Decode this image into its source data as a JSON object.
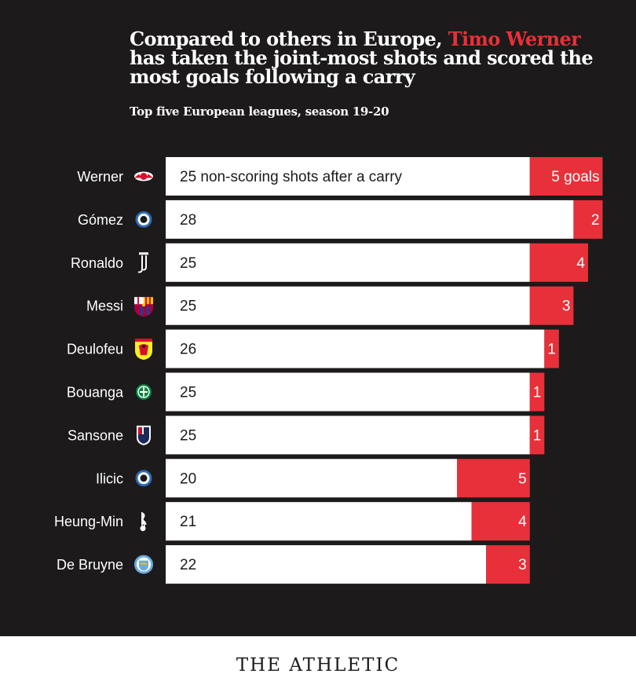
{
  "title": {
    "part1": "Compared to others in Europe, ",
    "highlight": "Timo Werner",
    "part2": " has taken the joint-most shots and scored the most goals following a carry"
  },
  "subtitle": "Top five European leagues, season 19-20",
  "brand": "THE ATHLETIC",
  "colors": {
    "background": "#1c1a1a",
    "shots_bar": "#ffffff",
    "goals_bar": "#e8303a",
    "text": "#ffffff",
    "bar_text": "#1c1a1a"
  },
  "chart_data": {
    "type": "bar",
    "orientation": "horizontal",
    "stacked": true,
    "title": "Compared to others in Europe, Timo Werner has taken the joint-most shots and scored the most goals following a carry",
    "subtitle": "Top five European leagues, season 19-20",
    "categories": [
      "Werner",
      "Gómez",
      "Ronaldo",
      "Messi",
      "Deulofeu",
      "Bouanga",
      "Sansone",
      "Ilicic",
      "Heung-Min",
      "De Bruyne"
    ],
    "club_icons": [
      "rb-leipzig-icon",
      "atalanta-icon",
      "juventus-icon",
      "barcelona-icon",
      "watford-icon",
      "saint-etienne-icon",
      "bologna-icon",
      "atalanta-icon",
      "tottenham-icon",
      "manchester-city-icon"
    ],
    "series": [
      {
        "name": "non-scoring shots after a carry",
        "values": [
          25,
          28,
          25,
          25,
          26,
          25,
          25,
          20,
          21,
          22
        ]
      },
      {
        "name": "goals",
        "values": [
          5,
          2,
          4,
          3,
          1,
          1,
          1,
          5,
          4,
          3
        ]
      }
    ],
    "first_labels": [
      "25 non-scoring shots after a carry",
      "28",
      "25",
      "25",
      "26",
      "25",
      "25",
      "20",
      "21",
      "22"
    ],
    "second_labels": [
      "5 goals",
      "2",
      "4",
      "3",
      "1",
      "1",
      "1",
      "5",
      "4",
      "3"
    ],
    "xlim": [
      0,
      30
    ],
    "xlabel": "",
    "ylabel": "",
    "grid": false,
    "legend": "none"
  }
}
